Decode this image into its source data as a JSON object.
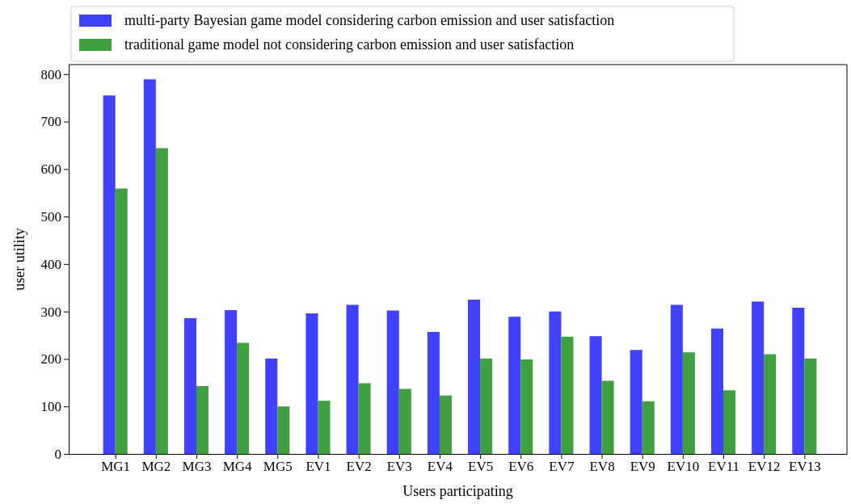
{
  "chart_data": {
    "type": "bar",
    "xlabel": "Users participating",
    "ylabel": "user utility",
    "categories": [
      "MG1",
      "MG2",
      "MG3",
      "MG4",
      "MG5",
      "EV1",
      "EV2",
      "EV3",
      "EV4",
      "EV5",
      "EV6",
      "EV7",
      "EV8",
      "EV9",
      "EV10",
      "EV11",
      "EV12",
      "EV13"
    ],
    "series": [
      {
        "name": "multi-party Bayesian game model considering carbon emission and user satisfaction",
        "color": "#4040ff",
        "values": [
          755,
          789,
          286,
          303,
          201,
          296,
          314,
          302,
          257,
          325,
          289,
          300,
          248,
          219,
          314,
          264,
          321,
          308
        ]
      },
      {
        "name": "traditional game model not considering carbon emission and user satisfaction",
        "color": "#40a040",
        "values": [
          559,
          644,
          143,
          234,
          100,
          112,
          149,
          137,
          123,
          201,
          199,
          247,
          154,
          111,
          214,
          134,
          210,
          201
        ]
      }
    ],
    "ylim": [
      0,
      820
    ],
    "yticks": [
      0,
      100,
      200,
      300,
      400,
      500,
      600,
      700,
      800
    ],
    "grid": false,
    "legend": "top left"
  }
}
